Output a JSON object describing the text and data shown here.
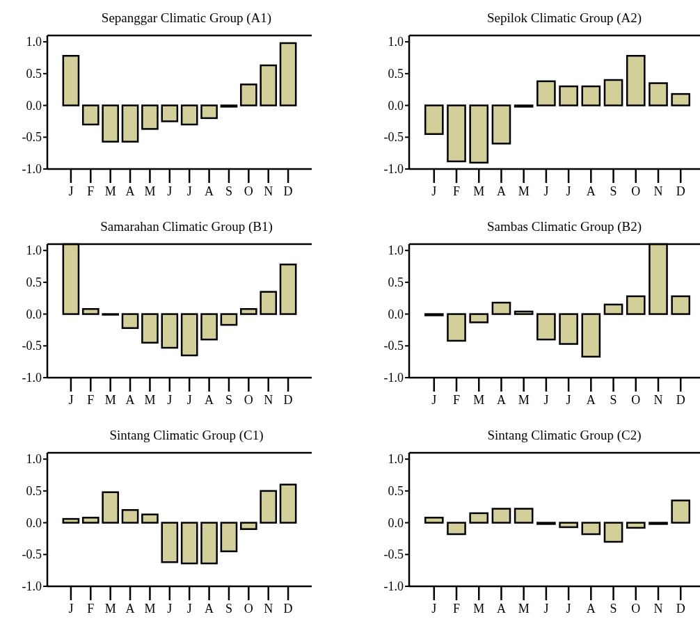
{
  "chart_data": [
    {
      "type": "bar",
      "title": "Sepanggar Climatic Group (A1)",
      "categories": [
        "J",
        "F",
        "M",
        "A",
        "M",
        "J",
        "J",
        "A",
        "S",
        "O",
        "N",
        "D"
      ],
      "values": [
        0.78,
        -0.3,
        -0.57,
        -0.57,
        -0.37,
        -0.25,
        -0.3,
        -0.2,
        -0.02,
        0.33,
        0.63,
        0.98
      ],
      "color": "#d3cf9a",
      "ylim": [
        -1,
        1.1
      ],
      "yticks": [
        {
          "value": -1,
          "label": "-1.0"
        },
        {
          "value": -0.5,
          "label": "-0.5"
        },
        {
          "value": 0,
          "label": "0.0"
        },
        {
          "value": 0.5,
          "label": "0.5"
        },
        {
          "value": 1,
          "label": "1.0"
        }
      ]
    },
    {
      "type": "bar",
      "title": "Sepilok Climatic Group (A2)",
      "categories": [
        "J",
        "F",
        "M",
        "A",
        "M",
        "J",
        "J",
        "A",
        "S",
        "O",
        "N",
        "D"
      ],
      "values": [
        -0.45,
        -0.88,
        -0.9,
        -0.6,
        -0.02,
        0.38,
        0.3,
        0.3,
        0.4,
        0.78,
        0.35,
        0.18
      ],
      "color": "#d3cf9a",
      "ylim": [
        -1,
        1.1
      ],
      "yticks": [
        {
          "value": -1,
          "label": "-1.0"
        },
        {
          "value": -0.5,
          "label": "-0.5"
        },
        {
          "value": 0,
          "label": "0.0"
        },
        {
          "value": 0.5,
          "label": "0.5"
        },
        {
          "value": 1,
          "label": "1.0"
        }
      ]
    },
    {
      "type": "bar",
      "title": "Samarahan Climatic Group (B1)",
      "categories": [
        "J",
        "F",
        "M",
        "A",
        "M",
        "J",
        "J",
        "A",
        "S",
        "O",
        "N",
        "D"
      ],
      "values": [
        1.1,
        0.08,
        -0.01,
        -0.22,
        -0.45,
        -0.53,
        -0.65,
        -0.4,
        -0.17,
        0.08,
        0.35,
        0.78
      ],
      "color": "#d3cf9a",
      "ylim": [
        -1,
        1.1
      ],
      "yticks": [
        {
          "value": -1,
          "label": "-1.0"
        },
        {
          "value": -0.5,
          "label": "-0.5"
        },
        {
          "value": 0,
          "label": "0.0"
        },
        {
          "value": 0.5,
          "label": "0.5"
        },
        {
          "value": 1,
          "label": "1.0"
        }
      ]
    },
    {
      "type": "bar",
      "title": "Sambas Climatic Group (B2)",
      "categories": [
        "J",
        "F",
        "M",
        "A",
        "M",
        "J",
        "J",
        "A",
        "S",
        "O",
        "N",
        "D"
      ],
      "values": [
        -0.02,
        -0.42,
        -0.13,
        0.18,
        0.04,
        -0.4,
        -0.47,
        -0.67,
        0.15,
        0.28,
        1.1,
        0.28
      ],
      "color": "#d3cf9a",
      "ylim": [
        -1,
        1.1
      ],
      "yticks": [
        {
          "value": -1,
          "label": "-1.0"
        },
        {
          "value": -0.5,
          "label": "-0.5"
        },
        {
          "value": 0,
          "label": "0.0"
        },
        {
          "value": 0.5,
          "label": "0.5"
        },
        {
          "value": 1,
          "label": "1.0"
        }
      ]
    },
    {
      "type": "bar",
      "title": "Sintang Climatic Group (C1)",
      "categories": [
        "J",
        "F",
        "M",
        "A",
        "M",
        "J",
        "J",
        "A",
        "S",
        "O",
        "N",
        "D"
      ],
      "values": [
        0.06,
        0.08,
        0.48,
        0.2,
        0.13,
        -0.62,
        -0.64,
        -0.64,
        -0.45,
        -0.1,
        0.5,
        0.6
      ],
      "color": "#d3cf9a",
      "ylim": [
        -1,
        1.1
      ],
      "yticks": [
        {
          "value": -1,
          "label": "-1.0"
        },
        {
          "value": -0.5,
          "label": "-0.5"
        },
        {
          "value": 0,
          "label": "0.0"
        },
        {
          "value": 0.5,
          "label": "0.5"
        },
        {
          "value": 1,
          "label": "1.0"
        }
      ]
    },
    {
      "type": "bar",
      "title": "Sintang Climatic Group (C2)",
      "categories": [
        "J",
        "F",
        "M",
        "A",
        "M",
        "J",
        "J",
        "A",
        "S",
        "O",
        "N",
        "D"
      ],
      "values": [
        0.08,
        -0.18,
        0.15,
        0.22,
        0.22,
        -0.02,
        -0.07,
        -0.18,
        -0.3,
        -0.08,
        -0.02,
        0.35
      ],
      "color": "#d3cf9a",
      "ylim": [
        -1,
        1.1
      ],
      "yticks": [
        {
          "value": -1,
          "label": "-1.0"
        },
        {
          "value": -0.5,
          "label": "-0.5"
        },
        {
          "value": 0,
          "label": "0.0"
        },
        {
          "value": 0.5,
          "label": "0.5"
        },
        {
          "value": 1,
          "label": "1.0"
        }
      ]
    }
  ]
}
